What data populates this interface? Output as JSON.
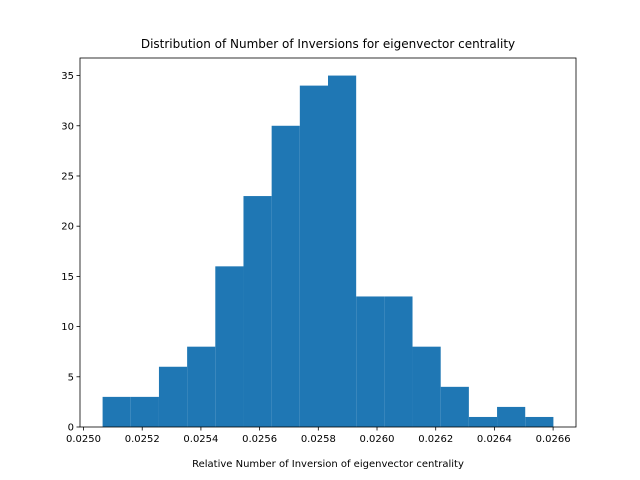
{
  "chart_data": {
    "type": "histogram",
    "title": "Distribution of Number of Inversions for eigenvector centrality",
    "xlabel": "Relative Number of Inversion of eigenvector centrality",
    "color": "#1f77b4",
    "bins": [
      0.025065,
      0.025161,
      0.025257,
      0.025353,
      0.025449,
      0.025545,
      0.025641,
      0.025737,
      0.025833,
      0.025929,
      0.026025,
      0.026121,
      0.026217,
      0.026313,
      0.026409,
      0.026505,
      0.026601
    ],
    "counts": [
      3,
      3,
      6,
      8,
      16,
      23,
      30,
      34,
      35,
      13,
      13,
      8,
      4,
      1,
      2,
      1
    ],
    "xlim": [
      0.024988,
      0.026678
    ],
    "xticks": [
      {
        "value": 0.025,
        "label": "0.0250"
      },
      {
        "value": 0.0252,
        "label": "0.0252"
      },
      {
        "value": 0.0254,
        "label": "0.0254"
      },
      {
        "value": 0.0256,
        "label": "0.0256"
      },
      {
        "value": 0.0258,
        "label": "0.0258"
      },
      {
        "value": 0.026,
        "label": "0.0260"
      },
      {
        "value": 0.0262,
        "label": "0.0262"
      },
      {
        "value": 0.0264,
        "label": "0.0264"
      },
      {
        "value": 0.0266,
        "label": "0.0266"
      }
    ],
    "ylim": [
      0,
      36.75
    ],
    "yticks": [
      0,
      5,
      10,
      15,
      20,
      25,
      30,
      35
    ]
  }
}
